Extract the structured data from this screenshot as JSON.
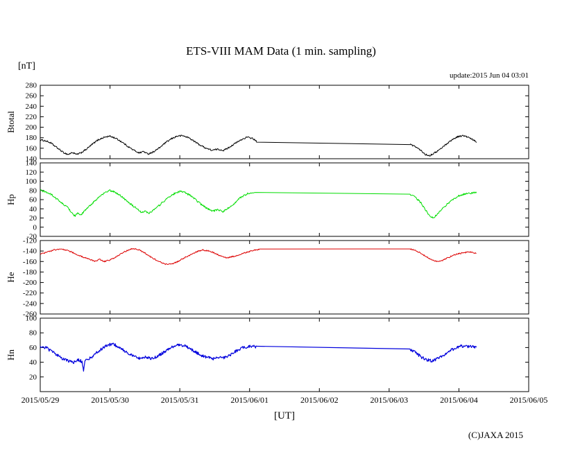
{
  "page": {
    "title": "ETS-VIII MAM Data (1 min. sampling)",
    "unit_label": "[nT]",
    "update_text": "update:2015 Jun 04 03:01",
    "xaxis_label": "[UT]",
    "copyright": "(C)JAXA 2015"
  },
  "chart_data": {
    "type": "line",
    "title": "ETS-VIII MAM Data (1 min. sampling)",
    "x_unit": "days since 2015/05/29 00:00 UT",
    "x_range": [
      0,
      7
    ],
    "x_tick_labels": [
      "2015/05/29",
      "2015/05/30",
      "2015/05/31",
      "2015/06/01",
      "2015/06/02",
      "2015/06/03",
      "2015/06/04",
      "2015/06/05"
    ],
    "grid": false,
    "legend": "none",
    "data_gap": "straight line drawn between 2015/06/01 ~02:00 and 2015/06/03 ~07:00 (no samples)",
    "panels": [
      {
        "name": "Btotal",
        "color": "#000000",
        "stroke_width": 1,
        "noise": 1.5,
        "ylim": [
          140,
          280
        ],
        "yticks": [
          280,
          260,
          240,
          220,
          200,
          180,
          160,
          140
        ],
        "points": [
          [
            0.0,
            176
          ],
          [
            0.08,
            174
          ],
          [
            0.15,
            170
          ],
          [
            0.25,
            160
          ],
          [
            0.33,
            152
          ],
          [
            0.4,
            148
          ],
          [
            0.46,
            152
          ],
          [
            0.52,
            148
          ],
          [
            0.58,
            151
          ],
          [
            0.66,
            158
          ],
          [
            0.75,
            168
          ],
          [
            0.83,
            176
          ],
          [
            0.92,
            181
          ],
          [
            1.0,
            183
          ],
          [
            1.08,
            179
          ],
          [
            1.17,
            172
          ],
          [
            1.25,
            164
          ],
          [
            1.33,
            157
          ],
          [
            1.42,
            151
          ],
          [
            1.48,
            154
          ],
          [
            1.54,
            149
          ],
          [
            1.62,
            153
          ],
          [
            1.71,
            161
          ],
          [
            1.79,
            170
          ],
          [
            1.88,
            178
          ],
          [
            1.96,
            183
          ],
          [
            2.04,
            184
          ],
          [
            2.13,
            180
          ],
          [
            2.21,
            173
          ],
          [
            2.29,
            166
          ],
          [
            2.38,
            160
          ],
          [
            2.46,
            156
          ],
          [
            2.54,
            158
          ],
          [
            2.63,
            156
          ],
          [
            2.71,
            162
          ],
          [
            2.79,
            169
          ],
          [
            2.88,
            176
          ],
          [
            2.96,
            181
          ],
          [
            3.04,
            179
          ],
          [
            3.1,
            173
          ],
          [
            5.3,
            167
          ],
          [
            5.38,
            163
          ],
          [
            5.46,
            155
          ],
          [
            5.52,
            148
          ],
          [
            5.58,
            146
          ],
          [
            5.65,
            151
          ],
          [
            5.73,
            158
          ],
          [
            5.81,
            167
          ],
          [
            5.9,
            176
          ],
          [
            5.98,
            182
          ],
          [
            6.06,
            184
          ],
          [
            6.13,
            181
          ],
          [
            6.2,
            176
          ],
          [
            6.25,
            172
          ]
        ]
      },
      {
        "name": "Hp",
        "color": "#00dd00",
        "stroke_width": 1,
        "noise": 2.0,
        "ylim": [
          -20,
          140
        ],
        "yticks": [
          140,
          120,
          100,
          80,
          60,
          40,
          20,
          0,
          -20
        ],
        "points": [
          [
            0.0,
            80
          ],
          [
            0.08,
            77
          ],
          [
            0.17,
            70
          ],
          [
            0.25,
            60
          ],
          [
            0.33,
            50
          ],
          [
            0.4,
            42
          ],
          [
            0.46,
            30
          ],
          [
            0.5,
            24
          ],
          [
            0.54,
            32
          ],
          [
            0.58,
            25
          ],
          [
            0.63,
            35
          ],
          [
            0.7,
            45
          ],
          [
            0.78,
            57
          ],
          [
            0.86,
            68
          ],
          [
            0.94,
            76
          ],
          [
            1.0,
            80
          ],
          [
            1.06,
            77
          ],
          [
            1.14,
            70
          ],
          [
            1.22,
            60
          ],
          [
            1.3,
            50
          ],
          [
            1.38,
            40
          ],
          [
            1.45,
            32
          ],
          [
            1.5,
            36
          ],
          [
            1.55,
            30
          ],
          [
            1.6,
            35
          ],
          [
            1.68,
            44
          ],
          [
            1.76,
            55
          ],
          [
            1.84,
            65
          ],
          [
            1.92,
            73
          ],
          [
            2.0,
            78
          ],
          [
            2.08,
            75
          ],
          [
            2.16,
            68
          ],
          [
            2.24,
            58
          ],
          [
            2.32,
            48
          ],
          [
            2.4,
            40
          ],
          [
            2.48,
            35
          ],
          [
            2.55,
            38
          ],
          [
            2.62,
            34
          ],
          [
            2.7,
            42
          ],
          [
            2.78,
            52
          ],
          [
            2.86,
            63
          ],
          [
            2.94,
            71
          ],
          [
            3.02,
            75
          ],
          [
            3.08,
            74
          ],
          [
            5.3,
            72
          ],
          [
            5.38,
            65
          ],
          [
            5.46,
            52
          ],
          [
            5.52,
            38
          ],
          [
            5.58,
            24
          ],
          [
            5.63,
            20
          ],
          [
            5.68,
            27
          ],
          [
            5.75,
            38
          ],
          [
            5.83,
            50
          ],
          [
            5.91,
            60
          ],
          [
            5.99,
            68
          ],
          [
            6.08,
            72
          ],
          [
            6.16,
            74
          ],
          [
            6.25,
            75
          ]
        ]
      },
      {
        "name": "He",
        "color": "#dd0000",
        "stroke_width": 1,
        "noise": 1.2,
        "ylim": [
          -260,
          -120
        ],
        "yticks": [
          -120,
          -140,
          -160,
          -180,
          -200,
          -220,
          -240,
          -260
        ],
        "points": [
          [
            0.0,
            -146
          ],
          [
            0.1,
            -142
          ],
          [
            0.2,
            -138
          ],
          [
            0.3,
            -136
          ],
          [
            0.4,
            -139
          ],
          [
            0.5,
            -145
          ],
          [
            0.6,
            -151
          ],
          [
            0.7,
            -156
          ],
          [
            0.78,
            -159
          ],
          [
            0.85,
            -156
          ],
          [
            0.92,
            -160
          ],
          [
            1.0,
            -157
          ],
          [
            1.08,
            -152
          ],
          [
            1.16,
            -145
          ],
          [
            1.25,
            -139
          ],
          [
            1.33,
            -135
          ],
          [
            1.42,
            -138
          ],
          [
            1.5,
            -144
          ],
          [
            1.58,
            -151
          ],
          [
            1.67,
            -158
          ],
          [
            1.75,
            -163
          ],
          [
            1.83,
            -166
          ],
          [
            1.92,
            -163
          ],
          [
            2.0,
            -158
          ],
          [
            2.08,
            -152
          ],
          [
            2.17,
            -146
          ],
          [
            2.25,
            -141
          ],
          [
            2.33,
            -138
          ],
          [
            2.42,
            -140
          ],
          [
            2.5,
            -144
          ],
          [
            2.58,
            -149
          ],
          [
            2.67,
            -153
          ],
          [
            2.75,
            -151
          ],
          [
            2.83,
            -148
          ],
          [
            2.92,
            -144
          ],
          [
            3.0,
            -141
          ],
          [
            3.08,
            -138
          ],
          [
            3.14,
            -137
          ],
          [
            5.3,
            -136
          ],
          [
            5.36,
            -138
          ],
          [
            5.44,
            -143
          ],
          [
            5.52,
            -150
          ],
          [
            5.6,
            -156
          ],
          [
            5.68,
            -160
          ],
          [
            5.76,
            -158
          ],
          [
            5.84,
            -153
          ],
          [
            5.92,
            -148
          ],
          [
            6.0,
            -145
          ],
          [
            6.08,
            -143
          ],
          [
            6.16,
            -142
          ],
          [
            6.25,
            -144
          ]
        ]
      },
      {
        "name": "Hn",
        "color": "#0000dd",
        "stroke_width": 1.2,
        "noise": 2.0,
        "ylim": [
          0,
          100
        ],
        "yticks": [
          100,
          80,
          60,
          40,
          20
        ],
        "points": [
          [
            0.0,
            62
          ],
          [
            0.08,
            60
          ],
          [
            0.16,
            55
          ],
          [
            0.24,
            50
          ],
          [
            0.32,
            45
          ],
          [
            0.4,
            42
          ],
          [
            0.48,
            40
          ],
          [
            0.55,
            43
          ],
          [
            0.6,
            41
          ],
          [
            0.62,
            28
          ],
          [
            0.64,
            42
          ],
          [
            0.72,
            46
          ],
          [
            0.8,
            52
          ],
          [
            0.88,
            58
          ],
          [
            0.96,
            63
          ],
          [
            1.04,
            65
          ],
          [
            1.12,
            61
          ],
          [
            1.2,
            56
          ],
          [
            1.28,
            51
          ],
          [
            1.36,
            47
          ],
          [
            1.44,
            45
          ],
          [
            1.52,
            47
          ],
          [
            1.6,
            45
          ],
          [
            1.68,
            48
          ],
          [
            1.76,
            53
          ],
          [
            1.84,
            58
          ],
          [
            1.92,
            62
          ],
          [
            2.0,
            64
          ],
          [
            2.08,
            62
          ],
          [
            2.16,
            58
          ],
          [
            2.24,
            53
          ],
          [
            2.32,
            49
          ],
          [
            2.4,
            46
          ],
          [
            2.48,
            45
          ],
          [
            2.56,
            47
          ],
          [
            2.64,
            46
          ],
          [
            2.72,
            50
          ],
          [
            2.8,
            55
          ],
          [
            2.88,
            59
          ],
          [
            2.96,
            61
          ],
          [
            3.04,
            62
          ],
          [
            3.1,
            61
          ],
          [
            5.3,
            58
          ],
          [
            5.38,
            53
          ],
          [
            5.46,
            47
          ],
          [
            5.54,
            43
          ],
          [
            5.62,
            42
          ],
          [
            5.7,
            45
          ],
          [
            5.78,
            50
          ],
          [
            5.86,
            55
          ],
          [
            5.94,
            59
          ],
          [
            6.02,
            62
          ],
          [
            6.1,
            62
          ],
          [
            6.18,
            61
          ],
          [
            6.25,
            60
          ]
        ]
      }
    ]
  }
}
